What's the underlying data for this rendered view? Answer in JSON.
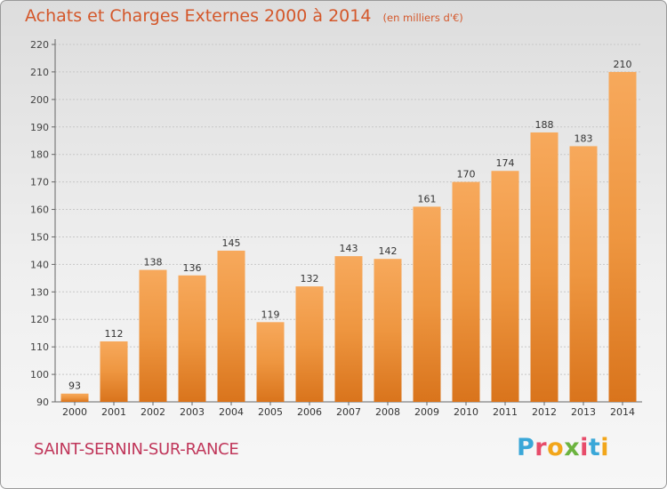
{
  "header": {
    "title": "Achats et Charges Externes 2000 à 2014",
    "subtitle": "(en milliers d'€)"
  },
  "footer": {
    "commune": "SAINT-SERNIN-SUR-RANCE"
  },
  "logo": {
    "text": "Proxiti",
    "letters": [
      {
        "ch": "P",
        "color": "#3aa7d8"
      },
      {
        "ch": "r",
        "color": "#e74c6a"
      },
      {
        "ch": "o",
        "color": "#f2a61a"
      },
      {
        "ch": "x",
        "color": "#6cb33f"
      },
      {
        "ch": "i",
        "color": "#e74c6a"
      },
      {
        "ch": "t",
        "color": "#3aa7d8"
      },
      {
        "ch": "i",
        "color": "#f2a61a"
      }
    ]
  },
  "colors": {
    "bar_light": "#f7a95c",
    "bar_mid": "#ee9640",
    "bar_dark": "#d9741c",
    "title": "#d4572a",
    "commune": "#c0365a",
    "grid": "#c8c8c8"
  },
  "chart_data": {
    "type": "bar",
    "title": "Achats et Charges Externes 2000 à 2014",
    "categories": [
      "2000",
      "2001",
      "2002",
      "2003",
      "2004",
      "2005",
      "2006",
      "2007",
      "2008",
      "2009",
      "2010",
      "2011",
      "2012",
      "2013",
      "2014"
    ],
    "values": [
      93,
      112,
      138,
      136,
      145,
      119,
      132,
      143,
      142,
      161,
      170,
      174,
      188,
      183,
      210
    ],
    "ylim": [
      90,
      220
    ],
    "yticks": [
      90,
      100,
      110,
      120,
      130,
      140,
      150,
      160,
      170,
      180,
      190,
      200,
      210,
      220
    ],
    "grid": true,
    "data_labels": true
  }
}
